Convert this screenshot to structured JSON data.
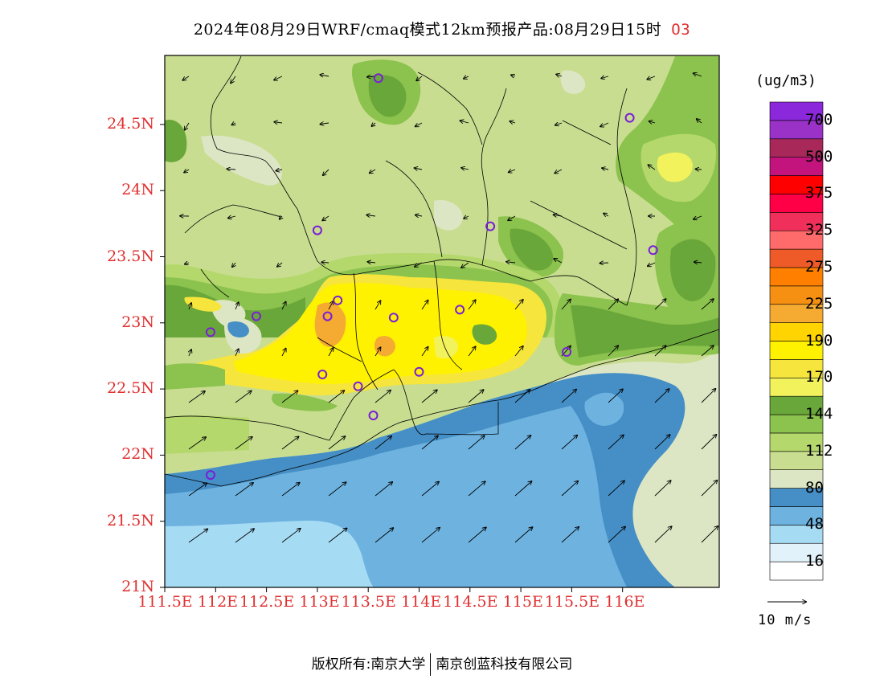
{
  "header": {
    "title": "2024年08月29日WRF/cmaq模式12km预报产品:08月29日15时",
    "variable": "O3"
  },
  "map": {
    "lat_labels": [
      "24.5N",
      "24N",
      "23.5N",
      "23N",
      "22.5N",
      "22N",
      "21.5N",
      "21N"
    ],
    "lon_labels": [
      "111.5E",
      "112E",
      "112.5E",
      "113E",
      "113.5E",
      "114E",
      "114.5E",
      "115E",
      "115.5E",
      "116E"
    ],
    "stations": [
      {
        "lon": 113.6,
        "lat": 24.85
      },
      {
        "lon": 116.07,
        "lat": 24.55
      },
      {
        "lon": 113.0,
        "lat": 23.7
      },
      {
        "lon": 114.7,
        "lat": 23.73
      },
      {
        "lon": 116.3,
        "lat": 23.55
      },
      {
        "lon": 112.4,
        "lat": 23.05
      },
      {
        "lon": 111.95,
        "lat": 22.93
      },
      {
        "lon": 113.1,
        "lat": 23.05
      },
      {
        "lon": 113.2,
        "lat": 23.17
      },
      {
        "lon": 113.75,
        "lat": 23.04
      },
      {
        "lon": 114.4,
        "lat": 23.1
      },
      {
        "lon": 115.45,
        "lat": 22.78
      },
      {
        "lon": 113.05,
        "lat": 22.61
      },
      {
        "lon": 113.4,
        "lat": 22.52
      },
      {
        "lon": 114.0,
        "lat": 22.63
      },
      {
        "lon": 113.55,
        "lat": 22.3
      },
      {
        "lon": 111.95,
        "lat": 21.85
      }
    ]
  },
  "colorbar": {
    "unit": "(ug/m3)",
    "bins": [
      {
        "color": "#ffffff"
      },
      {
        "color": "#e2f2fb"
      },
      {
        "color": "#a6dbf4"
      },
      {
        "color": "#6eb3e0"
      },
      {
        "color": "#458fc6"
      },
      {
        "color": "#dde6c4"
      },
      {
        "color": "#c8dd90"
      },
      {
        "color": "#b4d86c"
      },
      {
        "color": "#8cc24e"
      },
      {
        "color": "#6aa73a"
      },
      {
        "color": "#f2f25c"
      },
      {
        "color": "#f6e53c"
      },
      {
        "color": "#fff200"
      },
      {
        "color": "#ffd400"
      },
      {
        "color": "#f5aa32"
      },
      {
        "color": "#f59012"
      },
      {
        "color": "#ff8000"
      },
      {
        "color": "#ee5a28"
      },
      {
        "color": "#ff6b6b"
      },
      {
        "color": "#f0305a"
      },
      {
        "color": "#ff0046"
      },
      {
        "color": "#ff0000"
      },
      {
        "color": "#c3147d"
      },
      {
        "color": "#a8285a"
      },
      {
        "color": "#9b32c8"
      },
      {
        "color": "#8c28dc"
      }
    ],
    "labels": [
      "16",
      "48",
      "80",
      "112",
      "144",
      "170",
      "190",
      "225",
      "275",
      "325",
      "375",
      "500",
      "700"
    ]
  },
  "wind_ref": {
    "label": "10 m/s"
  },
  "footer": {
    "left": "版权所有:南京大学",
    "right": "南京创蓝科技有限公司"
  }
}
